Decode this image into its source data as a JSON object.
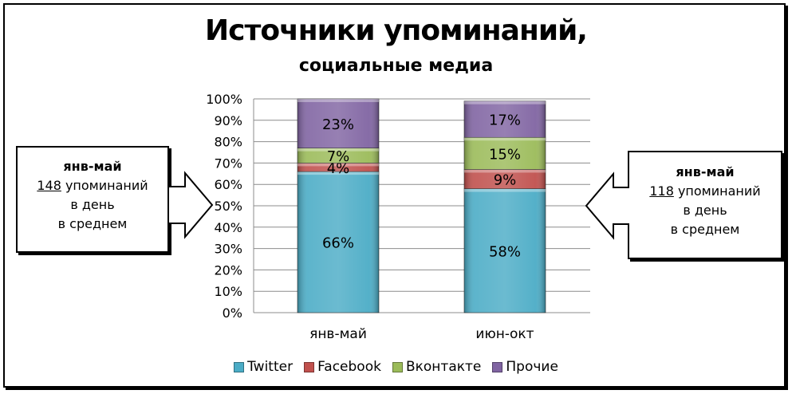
{
  "title": "Источники упоминаний,",
  "subtitle": "социальные медиа",
  "callouts": [
    {
      "period": "янв-май",
      "number": "148",
      "line1_rest": " упоминаний",
      "line2": "в день",
      "line3": "в среднем"
    },
    {
      "period": "янв-май",
      "number": "118",
      "line1_rest": " упоминаний",
      "line2": "в день",
      "line3": "в среднем"
    }
  ],
  "chart_data": {
    "type": "bar",
    "stacked": true,
    "percent": true,
    "categories": [
      "янв-май",
      "июн-окт"
    ],
    "series": [
      {
        "name": "Twitter",
        "values": [
          66,
          58
        ],
        "labels": [
          "66%",
          "58%"
        ],
        "color": "#4BACC6"
      },
      {
        "name": "Facebook",
        "values": [
          4,
          9
        ],
        "labels": [
          "4%",
          "9%"
        ],
        "color": "#C0504D"
      },
      {
        "name": "Вконтакте",
        "values": [
          7,
          15
        ],
        "labels": [
          "7%",
          "15%"
        ],
        "color": "#9BBB59"
      },
      {
        "name": "Прочие",
        "values": [
          23,
          17
        ],
        "labels": [
          "23%",
          "17%"
        ],
        "color": "#8064A2"
      }
    ],
    "y_ticks": [
      "0%",
      "10%",
      "20%",
      "30%",
      "40%",
      "50%",
      "60%",
      "70%",
      "80%",
      "90%",
      "100%"
    ],
    "ylim": [
      0,
      100
    ],
    "grid": true,
    "legend": "bottom"
  }
}
